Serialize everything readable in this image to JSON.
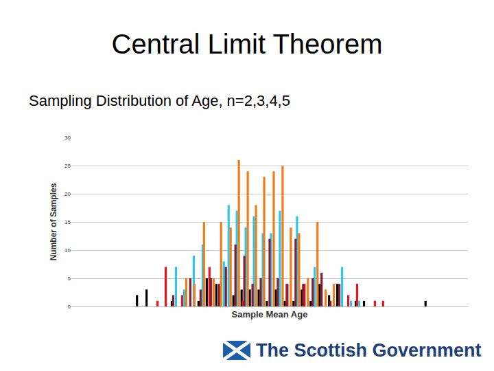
{
  "slide": {
    "title": "Central Limit Theorem",
    "subtitle": "Sampling Distribution of Age, n=2,3,4,5",
    "footer": "The Scottish Government"
  },
  "chart_data": {
    "type": "bar",
    "x_label": "Sample Mean Age",
    "y_label": "Number of Samples",
    "xlim": [
      0,
      580
    ],
    "ylim": [
      0,
      30
    ],
    "yticks": [
      0,
      5,
      10,
      15,
      20,
      25,
      30
    ],
    "grid": true,
    "tick_labels": "y",
    "series": [
      {
        "color": "#000000",
        "x": [
          96,
          110,
          147,
          186,
          198,
          212,
          237,
          249,
          261,
          274,
          286,
          299,
          312,
          325,
          337,
          350,
          363,
          377,
          389,
          416,
          428,
          518
        ],
        "values": [
          2,
          3,
          1,
          1,
          5,
          4,
          2,
          3,
          3,
          3,
          1,
          3,
          1,
          1,
          3,
          1,
          4,
          2,
          4,
          1,
          1,
          1
        ]
      },
      {
        "color": "#e8141b",
        "x": [
          126,
          138,
          162,
          202,
          251,
          316,
          341,
          405,
          418,
          444,
          456
        ],
        "values": [
          1,
          7,
          2,
          7,
          1,
          4,
          4,
          2,
          4,
          1,
          1
        ]
      },
      {
        "color": "#2ec7e8",
        "x": [
          153,
          165,
          179,
          192,
          223,
          230,
          242,
          255,
          267,
          280,
          292,
          305,
          330,
          356,
          396,
          409,
          421
        ],
        "values": [
          7,
          3,
          9,
          11,
          8,
          18,
          17,
          14,
          16,
          13,
          13,
          17,
          16,
          7,
          7,
          1,
          1
        ]
      },
      {
        "color": "#8b1a2a",
        "x": [
          149,
          174,
          189,
          204,
          216,
          226,
          240,
          253,
          265,
          277,
          290,
          302,
          315,
          328,
          339,
          353,
          366,
          379,
          392
        ],
        "values": [
          2,
          5,
          3,
          5,
          4,
          7,
          11,
          9,
          4,
          5,
          12,
          5,
          4,
          12,
          4,
          5,
          6,
          1,
          4
        ]
      },
      {
        "color": "#f07c1a",
        "x": [
          168,
          180,
          194,
          208,
          219,
          233,
          245,
          258,
          270,
          282,
          296,
          309,
          321,
          333,
          346,
          360,
          372,
          384
        ],
        "values": [
          5,
          4,
          15,
          5,
          15,
          14,
          26,
          24,
          18,
          23,
          24,
          25,
          14,
          13,
          5,
          15,
          3,
          4
        ]
      }
    ]
  }
}
